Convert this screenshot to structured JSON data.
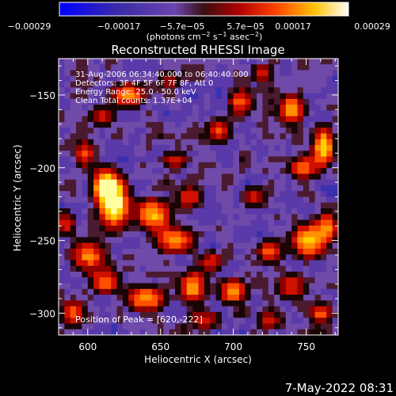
{
  "chart_data": {
    "type": "heatmap",
    "title": "Reconstructed RHESSI Image",
    "xlabel": "Heliocentric X (arcsec)",
    "ylabel": "Heliocentric Y (arcsec)",
    "xlim": [
      580,
      772
    ],
    "ylim": [
      -315,
      -125
    ],
    "x_ticks": [
      600,
      650,
      700,
      750
    ],
    "x_tick_labels": [
      "600",
      "650",
      "700",
      "750"
    ],
    "y_ticks": [
      -150,
      -200,
      -250,
      -300
    ],
    "y_tick_labels": [
      "−150",
      "−200",
      "−250",
      "−300"
    ],
    "colorbar": {
      "range": [
        -0.00029,
        0.00029
      ],
      "tick_labels": [
        "−0.00029",
        "−0.00017",
        "−5.7e−05",
        "5.7e−05",
        "0.00017",
        "0.00029"
      ],
      "unit_prefix": "(photons cm",
      "unit_exp1": "−2",
      "unit_mid": " s",
      "unit_exp2": "−1",
      "unit_tail": " asec",
      "unit_exp3": "−2",
      "unit_end": ")"
    },
    "annotations": [
      "31-Aug-2006 06:34:40.000 to 06:40:40.000",
      "Detectors: 3F 4F 5F 6F 7F 8F, Att 0",
      "Energy Range: 25.0 - 50.0 keV",
      "Clean     Total counts: 1.37E+04"
    ],
    "peak_label": "Position of Peak = [620,-222]",
    "peak_position": [
      620,
      -222
    ],
    "blobs": [
      {
        "x": 618,
        "y": -225,
        "v": 1.0,
        "sx": 7,
        "sy": 11
      },
      {
        "x": 612,
        "y": -212,
        "v": 0.85,
        "sx": 6,
        "sy": 7
      },
      {
        "x": 645,
        "y": -232,
        "v": 0.75,
        "sx": 8,
        "sy": 7
      },
      {
        "x": 660,
        "y": -250,
        "v": 0.7,
        "sx": 9,
        "sy": 6
      },
      {
        "x": 600,
        "y": -260,
        "v": 0.65,
        "sx": 8,
        "sy": 7
      },
      {
        "x": 612,
        "y": -278,
        "v": 0.6,
        "sx": 7,
        "sy": 6
      },
      {
        "x": 640,
        "y": -290,
        "v": 0.7,
        "sx": 9,
        "sy": 6
      },
      {
        "x": 672,
        "y": -282,
        "v": 0.75,
        "sx": 6,
        "sy": 7
      },
      {
        "x": 700,
        "y": -285,
        "v": 0.65,
        "sx": 7,
        "sy": 6
      },
      {
        "x": 752,
        "y": -250,
        "v": 0.8,
        "sx": 8,
        "sy": 8
      },
      {
        "x": 765,
        "y": -240,
        "v": 0.55,
        "sx": 5,
        "sy": 7
      },
      {
        "x": 762,
        "y": -185,
        "v": 0.85,
        "sx": 5,
        "sy": 9
      },
      {
        "x": 740,
        "y": -160,
        "v": 0.7,
        "sx": 6,
        "sy": 7
      },
      {
        "x": 748,
        "y": -200,
        "v": 0.55,
        "sx": 7,
        "sy": 6
      },
      {
        "x": 705,
        "y": -155,
        "v": 0.55,
        "sx": 6,
        "sy": 7
      },
      {
        "x": 690,
        "y": -175,
        "v": 0.5,
        "sx": 6,
        "sy": 6
      },
      {
        "x": 628,
        "y": -150,
        "v": 0.65,
        "sx": 8,
        "sy": 6
      },
      {
        "x": 610,
        "y": -165,
        "v": 0.45,
        "sx": 6,
        "sy": 5
      },
      {
        "x": 660,
        "y": -195,
        "v": 0.4,
        "sx": 7,
        "sy": 5
      },
      {
        "x": 670,
        "y": -220,
        "v": 0.5,
        "sx": 6,
        "sy": 6
      },
      {
        "x": 715,
        "y": -220,
        "v": 0.4,
        "sx": 6,
        "sy": 6
      },
      {
        "x": 725,
        "y": -258,
        "v": 0.55,
        "sx": 6,
        "sy": 6
      },
      {
        "x": 740,
        "y": -282,
        "v": 0.5,
        "sx": 7,
        "sy": 6
      },
      {
        "x": 760,
        "y": -300,
        "v": 0.55,
        "sx": 6,
        "sy": 5
      },
      {
        "x": 590,
        "y": -300,
        "v": 0.6,
        "sx": 6,
        "sy": 6
      },
      {
        "x": 598,
        "y": -190,
        "v": 0.5,
        "sx": 5,
        "sy": 7
      },
      {
        "x": 585,
        "y": -238,
        "v": 0.45,
        "sx": 5,
        "sy": 6
      },
      {
        "x": 680,
        "y": -305,
        "v": 0.45,
        "sx": 8,
        "sy": 5
      },
      {
        "x": 725,
        "y": -305,
        "v": 0.4,
        "sx": 7,
        "sy": 5
      },
      {
        "x": 655,
        "y": -140,
        "v": 0.35,
        "sx": 6,
        "sy": 5
      },
      {
        "x": 720,
        "y": -135,
        "v": 0.4,
        "sx": 6,
        "sy": 5
      },
      {
        "x": 685,
        "y": -265,
        "v": 0.45,
        "sx": 6,
        "sy": 5
      }
    ]
  },
  "footer": {
    "timestamp": "7-May-2022 08:31"
  }
}
